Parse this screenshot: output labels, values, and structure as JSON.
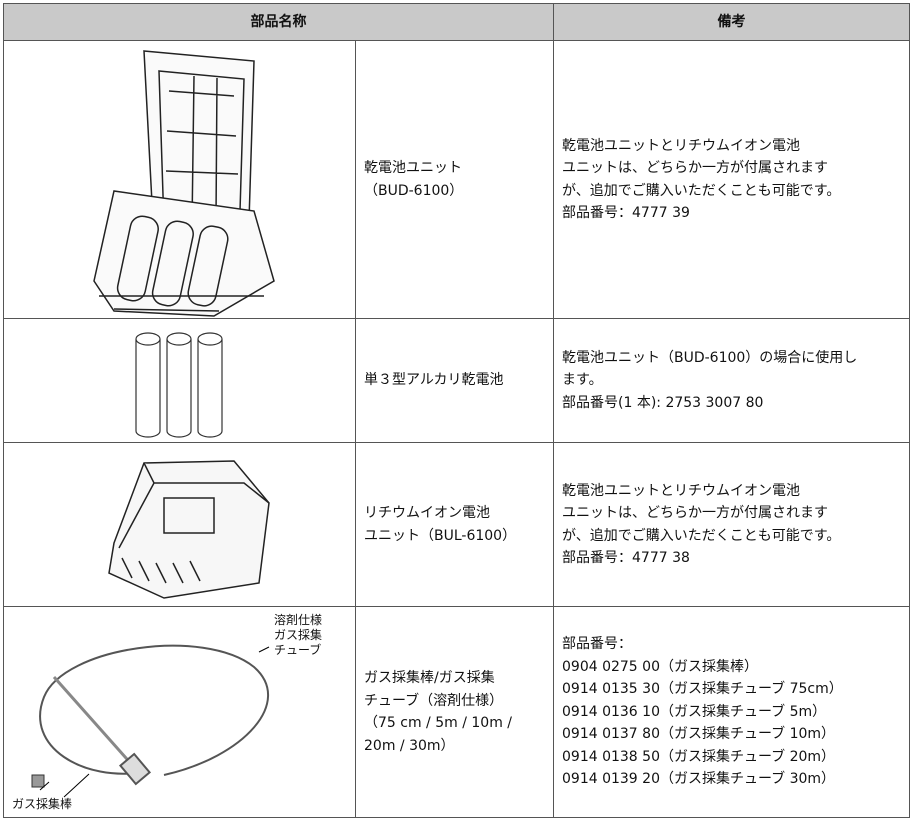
{
  "table": {
    "header": [
      "部品名称",
      "備考"
    ],
    "rows": [
      {
        "name": [
          "乾電池ユニット",
          "（BUD-6100）"
        ],
        "note": [
          "乾電池ユニットとリチウムイオン電池",
          "ユニットは、どちらか一方が付属されます",
          "が、追加でご購入いただくことも可能です。",
          "部品番号：4777 39"
        ]
      },
      {
        "name": [
          "単３型アルカリ乾電池"
        ],
        "note": [
          "乾電池ユニット（BUD-6100）の場合に使用し",
          "ます。",
          "部品番号(1 本): 2753 3007 80"
        ]
      },
      {
        "name": [
          "リチウムイオン電池",
          "ユニット（BUL-6100）"
        ],
        "note": [
          "乾電池ユニットとリチウムイオン電池",
          "ユニットは、どちらか一方が付属されます",
          "が、追加でご購入いただくことも可能です。",
          "部品番号：4777 38"
        ]
      },
      {
        "name": [
          "ガス採集棒/ガス採集",
          "チューブ（溶剤仕様）",
          "（75 cm / 5m / 10m /",
          "20m / 30m）"
        ],
        "note": [
          "部品番号：",
          "0904 0275 00（ガス採集棒）",
          "0914 0135 30（ガス採集チューブ 75cm）",
          "0914 0136 10（ガス採集チューブ 5m）",
          "0914 0137 80（ガス採集チューブ 10m）",
          "0914 0138 50（ガス採集チューブ 20m）",
          "0914 0139 20（ガス採集チューブ 30m）"
        ],
        "image_labels": {
          "tube": [
            "溶剤仕様",
            "ガス採集",
            "チューブ"
          ],
          "rod": "ガス採集棒"
        }
      }
    ]
  }
}
